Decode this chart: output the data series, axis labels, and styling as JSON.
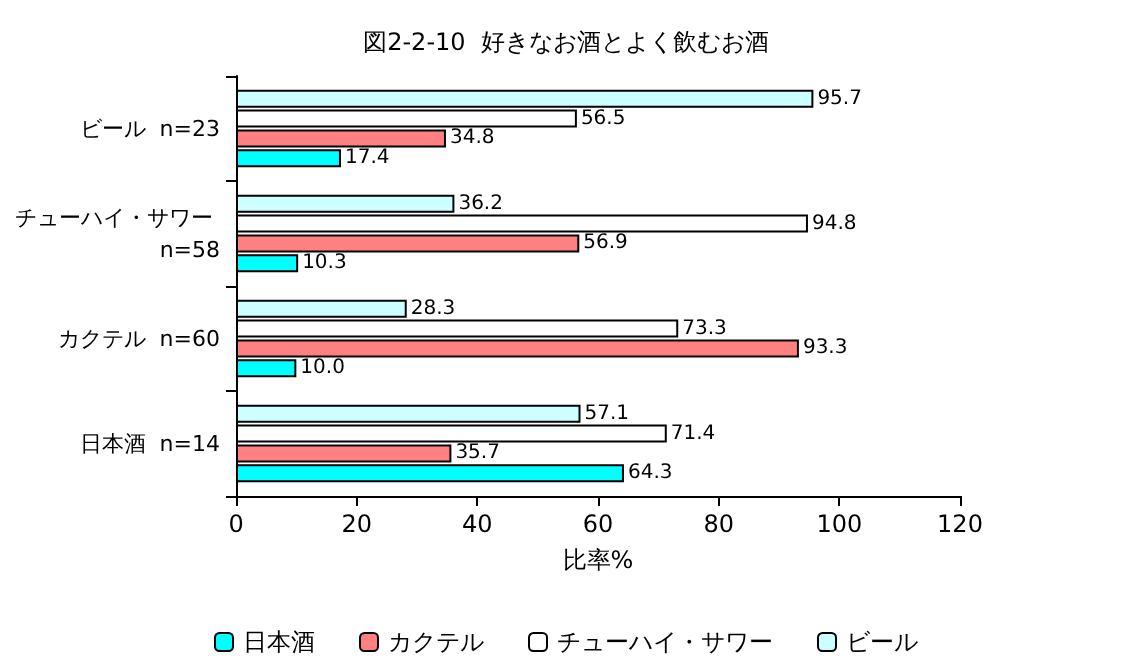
{
  "chart_data": {
    "type": "bar",
    "orientation": "horizontal",
    "title": "図2-2-10  好きなお酒とよく飲むお酒",
    "xlabel": "比率%",
    "categories": [
      "ビール  n=23",
      "チューハイ・サワー n=58",
      "カクテル  n=60",
      "日本酒  n=14"
    ],
    "series": [
      {
        "name": "日本酒",
        "color": "#00ffff",
        "values": [
          17.4,
          10.3,
          10.0,
          64.3
        ],
        "value_labels": [
          "17.4",
          "10.3",
          "10.0",
          "64.3"
        ]
      },
      {
        "name": "カクテル",
        "color": "#ff8080",
        "values": [
          34.8,
          56.9,
          93.3,
          35.7
        ],
        "value_labels": [
          "34.8",
          "56.9",
          "93.3",
          "35.7"
        ]
      },
      {
        "name": "チューハイ・サワー",
        "color": "#ffffff",
        "values": [
          56.5,
          94.8,
          73.3,
          71.4
        ],
        "value_labels": [
          "56.5",
          "94.8",
          "73.3",
          "71.4"
        ]
      },
      {
        "name": "ビール",
        "color": "#ccffff",
        "values": [
          95.7,
          36.2,
          28.3,
          57.1
        ],
        "value_labels": [
          "95.7",
          "36.2",
          "28.3",
          "57.1"
        ]
      }
    ],
    "xlim": [
      0,
      120
    ],
    "xticks": [
      0,
      20,
      40,
      60,
      80,
      100,
      120
    ],
    "grid": false,
    "legend": "bottom"
  }
}
